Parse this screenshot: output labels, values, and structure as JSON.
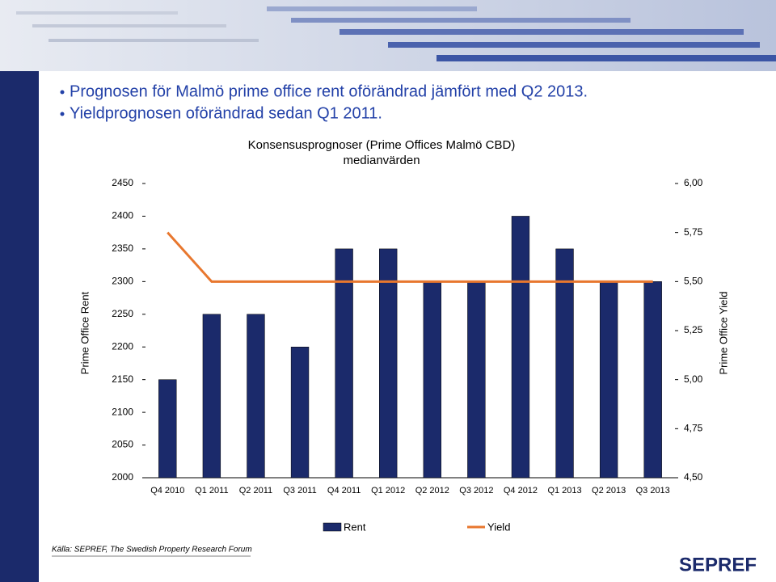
{
  "bullets": [
    "Prognosen för Malmö prime office rent oförändrad jämfört med Q2 2013.",
    "Yieldprognosen oförändrad sedan Q1 2011."
  ],
  "source": "Källa: SEPREF, The Swedish Property Research Forum",
  "logo": "SEPREF",
  "chart_data": {
    "type": "bar-line",
    "title": "Konsensusprognoser (Prime Offices Malmö CBD)",
    "subtitle": "medianvärden",
    "y_label": "Prime Office Rent",
    "y2_label": "Prime Office Yield",
    "categories": [
      "Q4 2010",
      "Q1 2011",
      "Q2 2011",
      "Q3 2011",
      "Q4 2011",
      "Q1 2012",
      "Q2 2012",
      "Q3 2012",
      "Q4 2012",
      "Q1 2013",
      "Q2 2013",
      "Q3 2013"
    ],
    "series": [
      {
        "name": "Rent",
        "type": "bar",
        "color": "#1b2a6b",
        "values": [
          2150,
          2250,
          2250,
          2200,
          2350,
          2350,
          2300,
          2300,
          2400,
          2350,
          2300,
          2300
        ]
      },
      {
        "name": "Yield",
        "type": "line",
        "axis": "y2",
        "color": "#e8772e",
        "values": [
          5.75,
          5.5,
          5.5,
          5.5,
          5.5,
          5.5,
          5.5,
          5.5,
          5.5,
          5.5,
          5.5,
          5.5
        ]
      }
    ],
    "ylim": [
      2000,
      2450
    ],
    "yticks": [
      2000,
      2050,
      2100,
      2150,
      2200,
      2250,
      2300,
      2350,
      2400,
      2450
    ],
    "y2lim": [
      4.5,
      6.0
    ],
    "y2ticks": [
      {
        "value": 4.5,
        "label": "4,50"
      },
      {
        "value": 4.75,
        "label": "4,75"
      },
      {
        "value": 5.0,
        "label": "5,00"
      },
      {
        "value": 5.25,
        "label": "5,25"
      },
      {
        "value": 5.5,
        "label": "5,50"
      },
      {
        "value": 5.75,
        "label": "5,75"
      },
      {
        "value": 6.0,
        "label": "6,00"
      }
    ],
    "grid": false,
    "legend": "bottom"
  }
}
